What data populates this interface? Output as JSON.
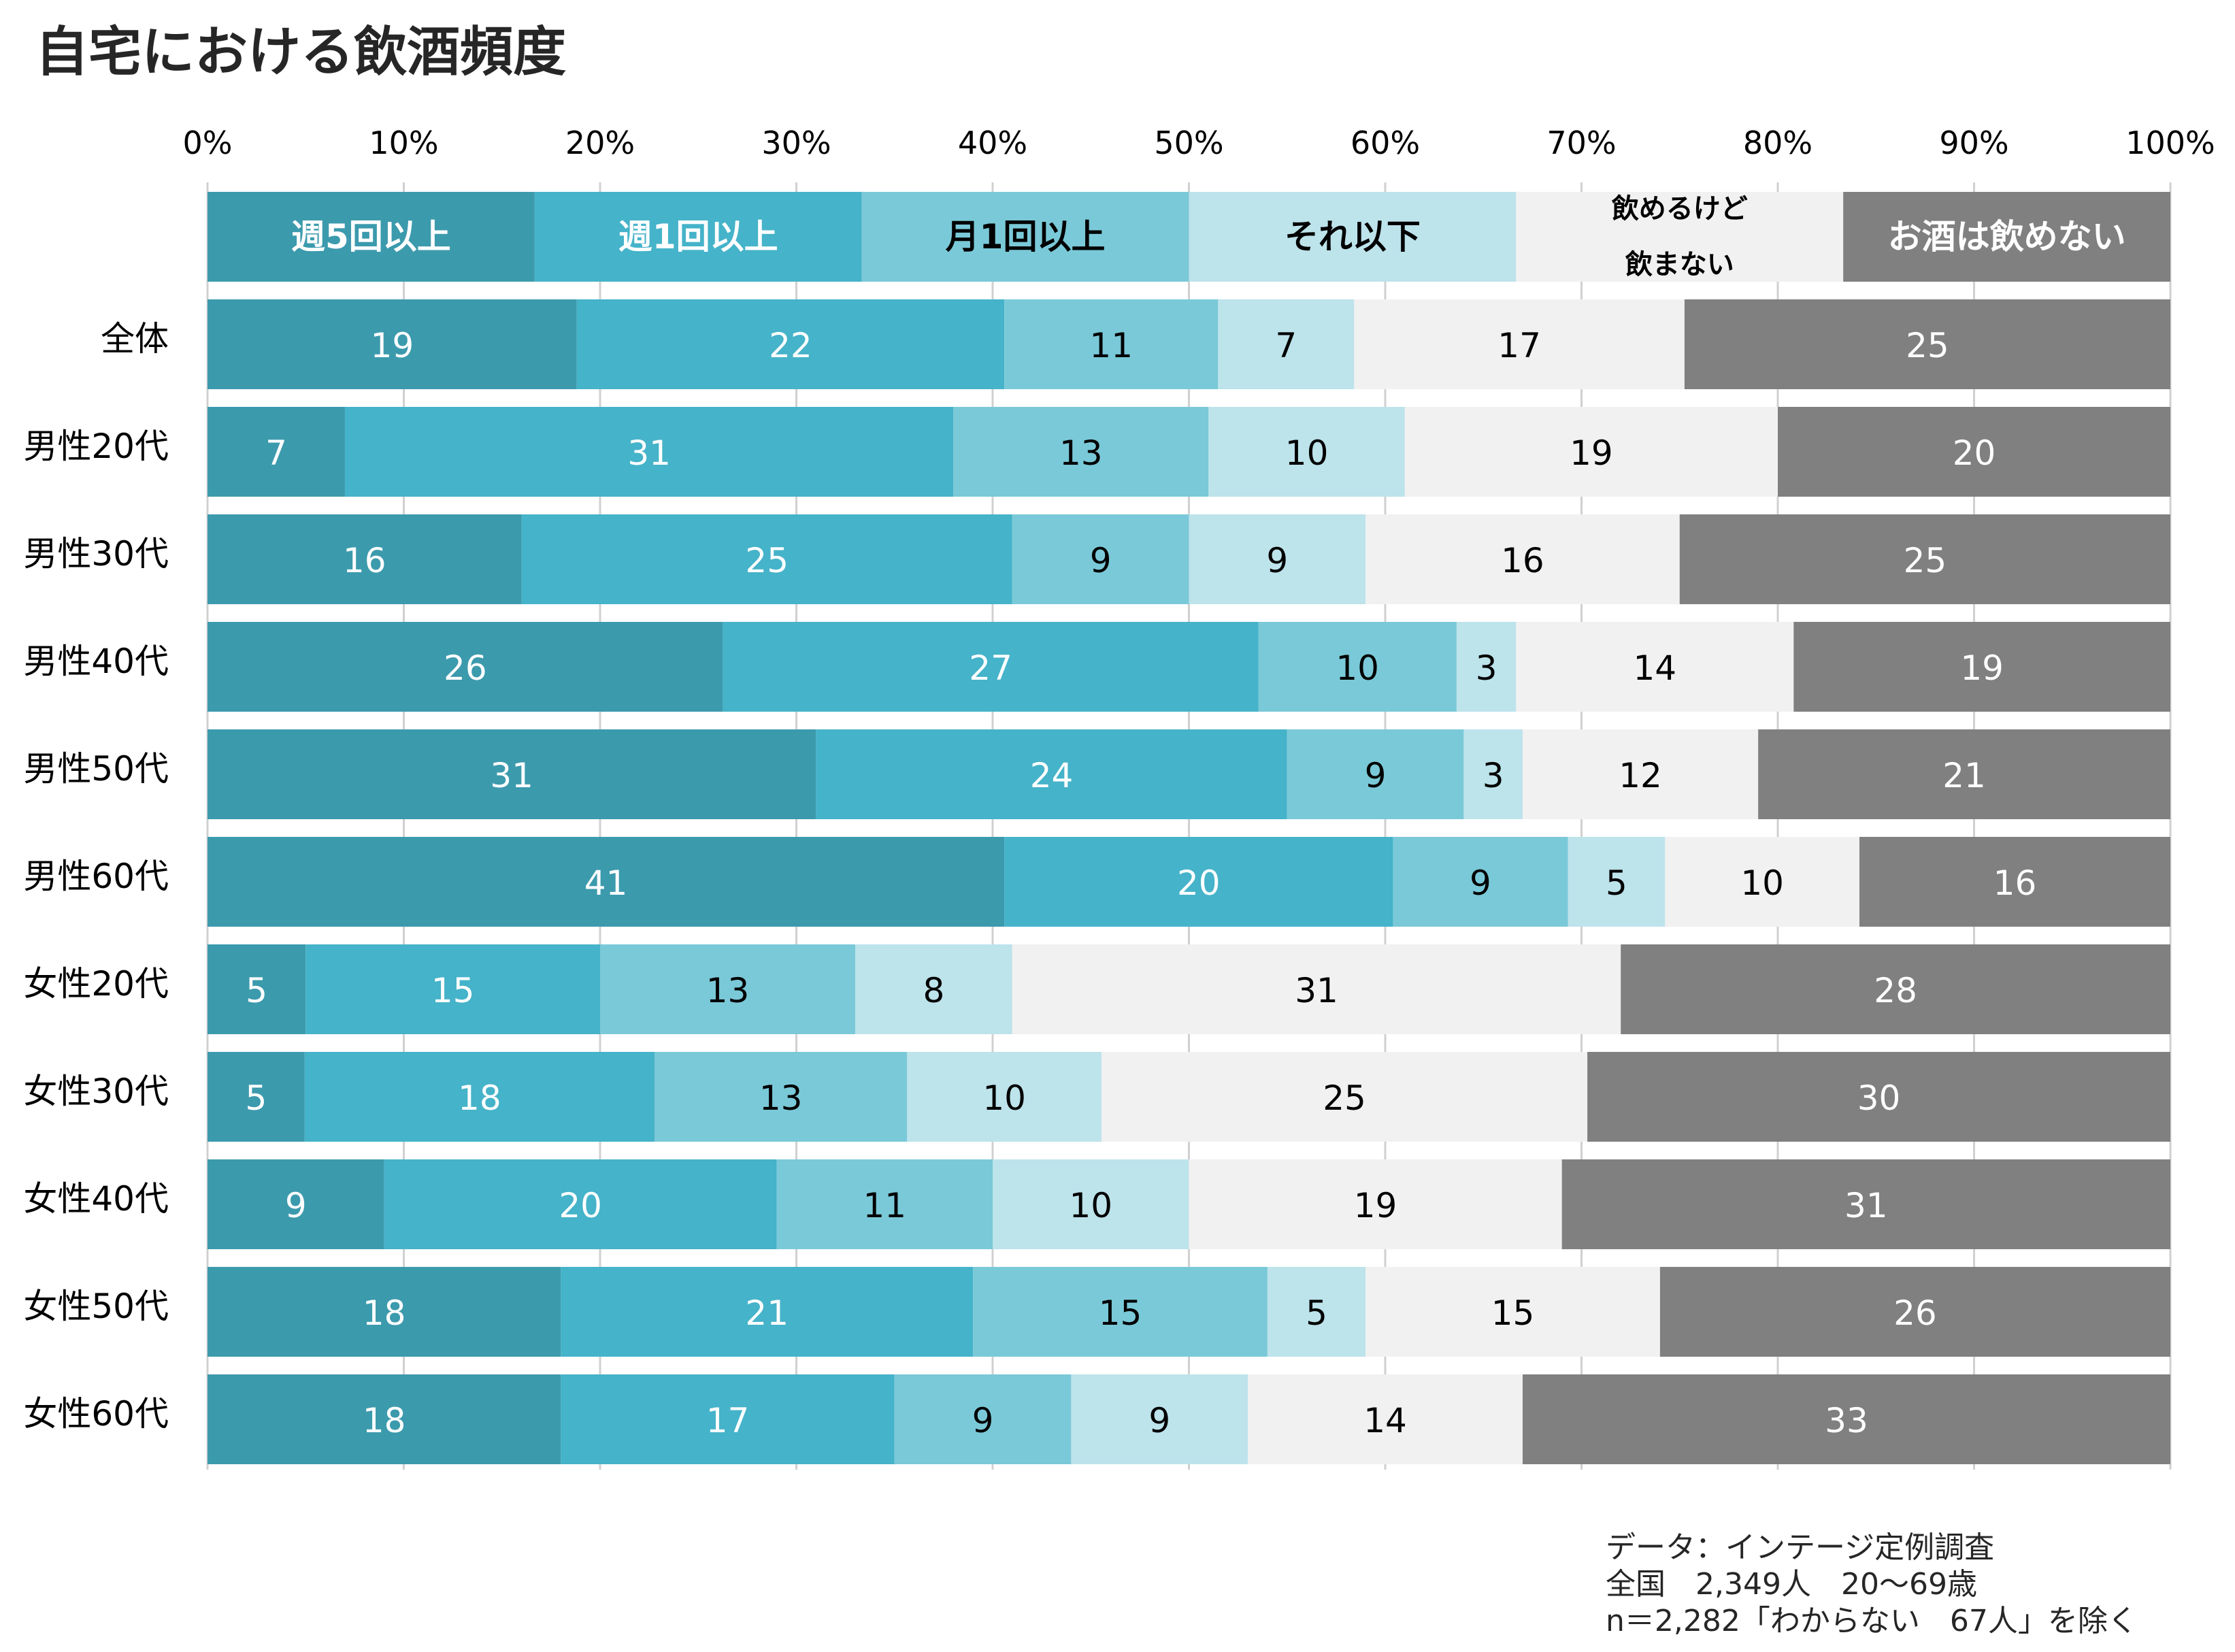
{
  "title": "自宅における飲酒頻度",
  "footnote": [
    "データ：インテージ定例調査",
    "全国　2,349人　20～69歳",
    "n＝2,282「わからない　67人」を除く"
  ],
  "chart_data": {
    "type": "bar",
    "orientation": "horizontal",
    "stacked": true,
    "x_ticks": [
      "0%",
      "10%",
      "20%",
      "30%",
      "40%",
      "50%",
      "60%",
      "70%",
      "80%",
      "90%",
      "100%"
    ],
    "xlim": [
      0,
      100
    ],
    "grid": true,
    "legend_position": "top",
    "categories": [
      "全体",
      "男性20代",
      "男性30代",
      "男性40代",
      "男性50代",
      "男性60代",
      "女性20代",
      "女性30代",
      "女性40代",
      "女性50代",
      "女性60代"
    ],
    "series": [
      {
        "name": "週5回以上",
        "legend_lines": [
          "週5回以上"
        ],
        "color": "#3C9AAD",
        "label_color": "#ffffff",
        "values": [
          19,
          7,
          16,
          26,
          31,
          41,
          5,
          5,
          9,
          18,
          18
        ]
      },
      {
        "name": "週1回以上",
        "legend_lines": [
          "週1回以上"
        ],
        "color": "#45B3C9",
        "label_color": "#ffffff",
        "values": [
          22,
          31,
          25,
          27,
          24,
          20,
          15,
          18,
          20,
          21,
          17
        ]
      },
      {
        "name": "月1回以上",
        "legend_lines": [
          "月1回以上"
        ],
        "color": "#7AC9D8",
        "label_color": "#000000",
        "values": [
          11,
          13,
          9,
          10,
          9,
          9,
          13,
          13,
          11,
          15,
          9
        ]
      },
      {
        "name": "それ以下",
        "legend_lines": [
          "それ以下"
        ],
        "color": "#BDE3EB",
        "label_color": "#000000",
        "values": [
          7,
          10,
          9,
          3,
          3,
          5,
          8,
          10,
          10,
          5,
          9
        ]
      },
      {
        "name": "飲めるけど飲まない",
        "legend_lines": [
          "飲めるけど",
          "飲まない"
        ],
        "color": "#F1F1F1",
        "label_color": "#000000",
        "values": [
          17,
          19,
          16,
          14,
          12,
          10,
          31,
          25,
          19,
          15,
          14
        ]
      },
      {
        "name": "お酒は飲めない",
        "legend_lines": [
          "お酒は飲めない"
        ],
        "color": "#808080",
        "label_color": "#ffffff",
        "values": [
          25,
          20,
          25,
          19,
          21,
          16,
          28,
          30,
          31,
          26,
          33
        ]
      }
    ]
  }
}
